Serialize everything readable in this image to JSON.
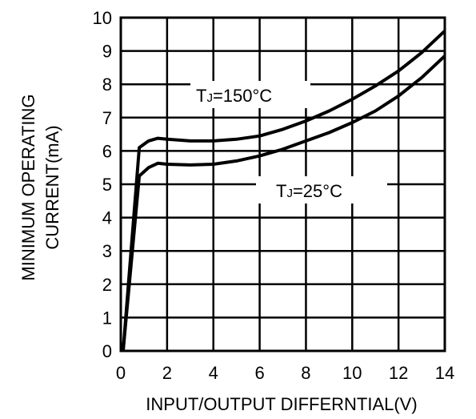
{
  "chart_data": {
    "type": "line",
    "xlabel": "INPUT/OUTPUT DIFFERNTIAL(V)",
    "ylabel_lines": [
      "MINIMUM OPERATING",
      "CURRENT(mA)"
    ],
    "xlim": [
      0,
      14
    ],
    "ylim": [
      0,
      10
    ],
    "xticks": [
      "0",
      "2",
      "4",
      "6",
      "8",
      "10",
      "12",
      "14"
    ],
    "yticks": [
      "0",
      "1",
      "2",
      "3",
      "4",
      "5",
      "6",
      "7",
      "8",
      "9",
      "10"
    ],
    "grid": true,
    "series": [
      {
        "name": "TJ=150°C",
        "label_main": "T",
        "label_sub": "J",
        "label_rest": "=150°C",
        "color": "#000000",
        "points": [
          [
            0.1,
            0
          ],
          [
            0.8,
            6.1
          ],
          [
            1.2,
            6.3
          ],
          [
            1.6,
            6.38
          ],
          [
            2.0,
            6.35
          ],
          [
            3.0,
            6.3
          ],
          [
            4.0,
            6.3
          ],
          [
            5.0,
            6.35
          ],
          [
            6.0,
            6.45
          ],
          [
            7.0,
            6.65
          ],
          [
            8.0,
            6.9
          ],
          [
            9.0,
            7.2
          ],
          [
            10.0,
            7.55
          ],
          [
            11.0,
            7.95
          ],
          [
            12.0,
            8.4
          ],
          [
            13.0,
            8.95
          ],
          [
            14.0,
            9.6
          ]
        ]
      },
      {
        "name": "TJ=25°C",
        "label_main": "T",
        "label_sub": "J",
        "label_rest": "=25°C",
        "color": "#000000",
        "points": [
          [
            0.1,
            0
          ],
          [
            0.8,
            5.25
          ],
          [
            1.2,
            5.5
          ],
          [
            1.6,
            5.63
          ],
          [
            2.0,
            5.6
          ],
          [
            3.0,
            5.58
          ],
          [
            4.0,
            5.6
          ],
          [
            5.0,
            5.7
          ],
          [
            6.0,
            5.85
          ],
          [
            7.0,
            6.05
          ],
          [
            8.0,
            6.3
          ],
          [
            9.0,
            6.55
          ],
          [
            10.0,
            6.85
          ],
          [
            11.0,
            7.2
          ],
          [
            12.0,
            7.65
          ],
          [
            13.0,
            8.2
          ],
          [
            14.0,
            8.85
          ]
        ]
      }
    ]
  }
}
